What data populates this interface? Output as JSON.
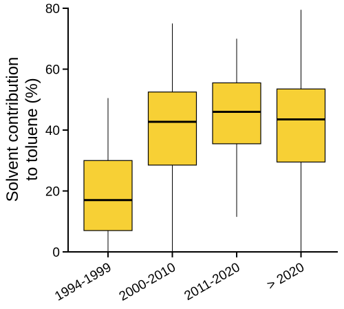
{
  "chart_data": {
    "type": "box",
    "title": "",
    "xlabel": "",
    "ylabel_lines": [
      "Solvent contribution",
      "to toluene (%)"
    ],
    "ylim": [
      0,
      80
    ],
    "yticks": [
      0,
      20,
      40,
      60,
      80
    ],
    "grid": false,
    "box_color": "#f7d035",
    "categories": [
      "1994-1999",
      "2000-2010",
      "2011-2020",
      "> 2020"
    ],
    "boxes": [
      {
        "min": 0,
        "q1": 7,
        "median": 17,
        "q3": 30,
        "max": 50.5
      },
      {
        "min": 0,
        "q1": 28.5,
        "median": 42.7,
        "q3": 52.5,
        "max": 75
      },
      {
        "min": 11.5,
        "q1": 35.5,
        "median": 46,
        "q3": 55.5,
        "max": 70
      },
      {
        "min": 0,
        "q1": 29.5,
        "median": 43.5,
        "q3": 53.5,
        "max": 79.5
      }
    ]
  }
}
